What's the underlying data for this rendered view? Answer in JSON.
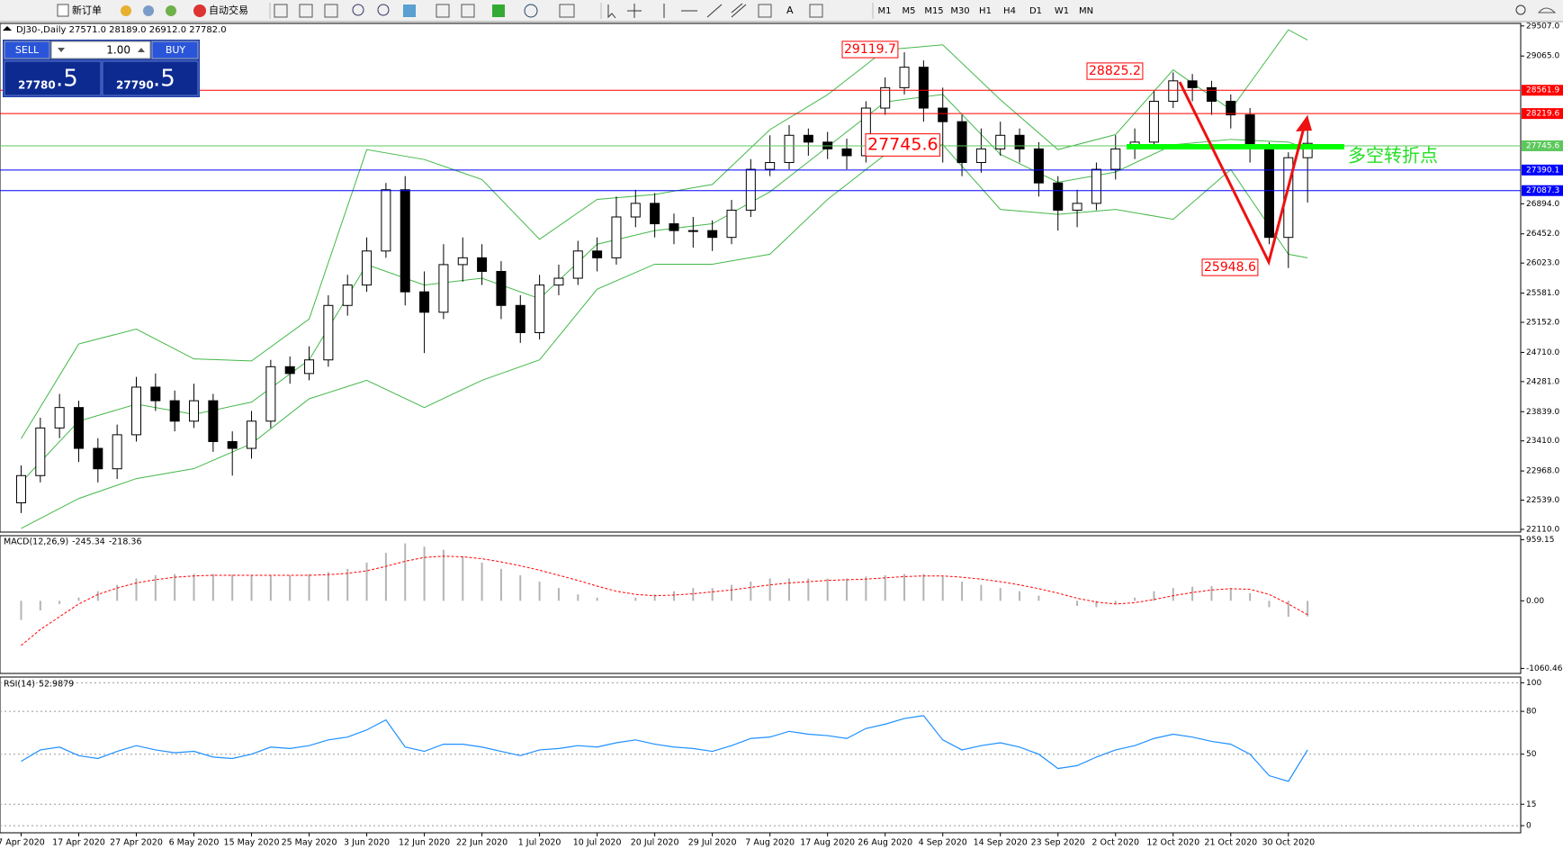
{
  "toolbar": {
    "new_order": "新订单",
    "auto_trading": "自动交易",
    "timeframes": [
      "M1",
      "M5",
      "M15",
      "M30",
      "H1",
      "H4",
      "D1",
      "W1",
      "MN"
    ]
  },
  "trade_panel": {
    "sell": "SELL",
    "buy": "BUY",
    "lot": "1.00",
    "sell_price": "27780",
    "sell_fraction": ".5",
    "buy_price": "27790",
    "buy_fraction": ".5"
  },
  "chart_data": [
    {
      "type": "candlestick",
      "header": "DJ30-,Daily  27571.0 28189.0 26912.0 27782.0",
      "up_color": "#ffffff",
      "down_color": "#000000",
      "xlim": [
        -1.1,
        78.1
      ],
      "xticks": [
        {
          "value": 0,
          "label": "7 Apr 2020"
        },
        {
          "value": 3,
          "label": "17 Apr 2020"
        },
        {
          "value": 6,
          "label": "27 Apr 2020"
        },
        {
          "value": 9,
          "label": "6 May 2020"
        },
        {
          "value": 12,
          "label": "15 May 2020"
        },
        {
          "value": 15,
          "label": "25 May 2020"
        },
        {
          "value": 18,
          "label": "3 Jun 2020"
        },
        {
          "value": 21,
          "label": "12 Jun 2020"
        },
        {
          "value": 24,
          "label": "22 Jun 2020"
        },
        {
          "value": 27,
          "label": "1 Jul 2020"
        },
        {
          "value": 30,
          "label": "10 Jul 2020"
        },
        {
          "value": 33,
          "label": "20 Jul 2020"
        },
        {
          "value": 36,
          "label": "29 Jul 2020"
        },
        {
          "value": 39,
          "label": "7 Aug 2020"
        },
        {
          "value": 42,
          "label": "17 Aug 2020"
        },
        {
          "value": 45,
          "label": "26 Aug 2020"
        },
        {
          "value": 48,
          "label": "4 Sep 2020"
        },
        {
          "value": 51,
          "label": "14 Sep 2020"
        },
        {
          "value": 54,
          "label": "23 Sep 2020"
        },
        {
          "value": 57,
          "label": "2 Oct 2020"
        },
        {
          "value": 60,
          "label": "12 Oct 2020"
        },
        {
          "value": 63,
          "label": "21 Oct 2020"
        },
        {
          "value": 66,
          "label": "30 Oct 2020"
        }
      ],
      "ylim": [
        22070,
        29544
      ],
      "yticks": [
        {
          "value": 29507,
          "label": "29507.0"
        },
        {
          "value": 29065,
          "label": "29065.0"
        },
        {
          "value": 26894,
          "label": "26894.0"
        },
        {
          "value": 26452,
          "label": "26452.0"
        },
        {
          "value": 26023,
          "label": "26023.0"
        },
        {
          "value": 25581,
          "label": "25581.0"
        },
        {
          "value": 25152,
          "label": "25152.0"
        },
        {
          "value": 24710,
          "label": "24710.0"
        },
        {
          "value": 24281,
          "label": "24281.0"
        },
        {
          "value": 23839,
          "label": "23839.0"
        },
        {
          "value": 23410,
          "label": "23410.0"
        },
        {
          "value": 22968,
          "label": "22968.0"
        },
        {
          "value": 22539,
          "label": "22539.0"
        },
        {
          "value": 22110,
          "label": "22110.0"
        }
      ],
      "open": [
        22500,
        22900,
        23600,
        23900,
        23300,
        23000,
        23500,
        24200,
        24000,
        23700,
        24000,
        23400,
        23300,
        23700,
        24500,
        24400,
        24600,
        25400,
        25700,
        26200,
        27100,
        25600,
        25300,
        26000,
        26100,
        25900,
        25400,
        25000,
        25700,
        25800,
        26200,
        26100,
        26700,
        26900,
        26600,
        26500,
        26500,
        26400,
        26800,
        27400,
        27500,
        27900,
        27800,
        27700,
        27600,
        28300,
        28600,
        28900,
        28300,
        28100,
        27500,
        27700,
        27900,
        27700,
        27200,
        26800,
        26900,
        27400,
        27700,
        27800,
        28400,
        28700,
        28600,
        28400,
        28200,
        27700,
        26400,
        27571
      ],
      "high": [
        23050,
        23750,
        24100,
        24000,
        23450,
        23650,
        24350,
        24400,
        24150,
        24250,
        24100,
        23550,
        23850,
        24600,
        24650,
        24800,
        25550,
        25850,
        26400,
        27200,
        27300,
        25900,
        26300,
        26400,
        26300,
        26050,
        25550,
        25850,
        26000,
        26350,
        26400,
        27000,
        27100,
        27050,
        26750,
        26700,
        26650,
        26950,
        27550,
        27900,
        28050,
        28000,
        27950,
        27850,
        28400,
        28750,
        29119.7,
        29000,
        28600,
        28200,
        28000,
        28100,
        28000,
        27800,
        27300,
        27100,
        27500,
        27900,
        28000,
        28550,
        28825.2,
        28800,
        28700,
        28500,
        28300,
        27800,
        27650,
        28189
      ],
      "low": [
        22350,
        22800,
        23450,
        23100,
        22800,
        22850,
        23400,
        23850,
        23550,
        23600,
        23250,
        22900,
        23150,
        23600,
        24250,
        24300,
        24500,
        25250,
        25600,
        26100,
        25400,
        24700,
        25200,
        25750,
        25700,
        25200,
        24850,
        24900,
        25550,
        25700,
        25900,
        26000,
        26550,
        26400,
        26300,
        26250,
        26200,
        26300,
        26700,
        27300,
        27400,
        27600,
        27550,
        27400,
        27500,
        28200,
        28500,
        28100,
        27500,
        27300,
        27350,
        27600,
        27500,
        27000,
        26500,
        26550,
        26800,
        27250,
        27550,
        27700,
        28300,
        28400,
        28200,
        28000,
        27500,
        26300,
        25948.6,
        26912
      ],
      "close": [
        22900,
        23600,
        23900,
        23300,
        23000,
        23500,
        24200,
        24000,
        23700,
        24000,
        23400,
        23300,
        23700,
        24500,
        24400,
        24600,
        25400,
        25700,
        26200,
        27100,
        25600,
        25300,
        26000,
        26100,
        25900,
        25400,
        25000,
        25700,
        25800,
        26200,
        26100,
        26700,
        26900,
        26600,
        26500,
        26500,
        26400,
        26800,
        27400,
        27500,
        27900,
        27800,
        27700,
        27600,
        28300,
        28600,
        28900,
        28300,
        28100,
        27500,
        27700,
        27900,
        27700,
        27200,
        26800,
        26900,
        27400,
        27700,
        27800,
        28400,
        28700,
        28600,
        28400,
        28200,
        27700,
        26400,
        27571,
        27782
      ],
      "bands": {
        "color": "#44b84a",
        "x": [
          0,
          3,
          6,
          9,
          12,
          15,
          18,
          21,
          24,
          27,
          30,
          33,
          36,
          39,
          42,
          45,
          48,
          51,
          54,
          57,
          60,
          63,
          66,
          67
        ],
        "upper": [
          23442,
          24834,
          25053,
          24614,
          24585,
          25200,
          27690,
          27544,
          27250,
          26372,
          26958,
          27031,
          27178,
          27983,
          28496,
          29155,
          29229,
          28423,
          27690,
          27910,
          28862,
          28277,
          29450,
          29300
        ],
        "middle": [
          22800,
          23700,
          23950,
          23800,
          23980,
          24600,
          26000,
          25700,
          25800,
          25500,
          26300,
          26500,
          26600,
          27070,
          27730,
          28390,
          28500,
          27620,
          27210,
          27360,
          27760,
          27840,
          27800,
          27700
        ],
        "lower": [
          22123,
          22563,
          22856,
          23002,
          23369,
          24028,
          24300,
          23900,
          24300,
          24600,
          25640,
          26006,
          26006,
          26152,
          26958,
          27617,
          27763,
          26811,
          26738,
          26811,
          26665,
          27397,
          26152,
          26100
        ]
      },
      "levels": [
        {
          "value": 28561.9,
          "color": "#ff0000"
        },
        {
          "value": 28219.6,
          "color": "#ff0000"
        },
        {
          "value": 27745.6,
          "color": "#5cc85c"
        },
        {
          "value": 27390.1,
          "color": "#0000ff"
        },
        {
          "value": 27087.3,
          "color": "#0000ff"
        }
      ],
      "annotations": [
        29119.7,
        28825.2,
        27745.6,
        25948.6
      ],
      "annotation_color": "#ff0000",
      "pivot_label": "多空转折点",
      "pivot_color": "#22e022"
    },
    {
      "type": "macd",
      "name": "MACD(12,26,9)",
      "hist_color": "#b4b4b4",
      "signal_color": "#ff0000",
      "ylim": [
        -1139,
        1021
      ],
      "yticks": [
        959.15,
        {
          "value": 0,
          "label": "0.00"
        },
        -1060.46
      ],
      "histogram": [
        -300,
        -150,
        -50,
        50,
        150,
        250,
        350,
        400,
        420,
        420,
        420,
        410,
        400,
        400,
        400,
        420,
        450,
        500,
        600,
        750,
        900,
        850,
        800,
        700,
        600,
        500,
        400,
        300,
        200,
        100,
        50,
        0,
        50,
        100,
        150,
        200,
        200,
        250,
        300,
        350,
        350,
        350,
        350,
        350,
        380,
        400,
        420,
        420,
        380,
        300,
        250,
        200,
        150,
        80,
        0,
        -80,
        -100,
        -50,
        50,
        150,
        200,
        220,
        230,
        200,
        120,
        -100,
        -250,
        -245.34
      ],
      "signal": [
        -700,
        -450,
        -250,
        -50,
        100,
        200,
        280,
        330,
        370,
        390,
        400,
        400,
        400,
        400,
        400,
        400,
        410,
        430,
        470,
        540,
        620,
        680,
        700,
        690,
        660,
        610,
        550,
        480,
        400,
        320,
        230,
        150,
        100,
        80,
        90,
        110,
        140,
        170,
        210,
        250,
        280,
        300,
        320,
        330,
        340,
        360,
        380,
        390,
        390,
        370,
        340,
        300,
        250,
        190,
        120,
        40,
        -20,
        -50,
        -30,
        20,
        80,
        130,
        170,
        190,
        180,
        100,
        -50,
        -218.36
      ]
    },
    {
      "type": "line",
      "name": "RSI(14)",
      "color": "#1e90ff",
      "ylim": [
        -5,
        104
      ],
      "yticks": [
        100,
        80,
        50,
        15,
        0
      ],
      "grid": true,
      "values": [
        45,
        53,
        55,
        49,
        47,
        52,
        56,
        53,
        51,
        52,
        48,
        47,
        50,
        55,
        54,
        56,
        60,
        62,
        67,
        74,
        55,
        52,
        57,
        57,
        55,
        52,
        49,
        53,
        54,
        56,
        55,
        58,
        60,
        57,
        55,
        54,
        52,
        56,
        61,
        62,
        66,
        64,
        63,
        61,
        68,
        71,
        75,
        77,
        60,
        53,
        56,
        58,
        55,
        50,
        40,
        42,
        48,
        53,
        56,
        61,
        64,
        62,
        59,
        57,
        50,
        35,
        31,
        52.9879
      ]
    }
  ]
}
